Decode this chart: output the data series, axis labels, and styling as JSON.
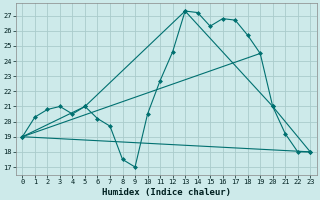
{
  "xlabel": "Humidex (Indice chaleur)",
  "background_color": "#cdeaea",
  "grid_color": "#aacccc",
  "line_color": "#007070",
  "xlim": [
    -0.5,
    23.5
  ],
  "ylim": [
    16.5,
    27.8
  ],
  "yticks": [
    17,
    18,
    19,
    20,
    21,
    22,
    23,
    24,
    25,
    26,
    27
  ],
  "xticks": [
    0,
    1,
    2,
    3,
    4,
    5,
    6,
    7,
    8,
    9,
    10,
    11,
    12,
    13,
    14,
    15,
    16,
    17,
    18,
    19,
    20,
    21,
    22,
    23
  ],
  "line_zigzag": {
    "x": [
      0,
      1,
      2,
      3,
      4,
      5,
      6,
      7,
      8,
      9,
      10,
      11,
      12,
      13,
      14,
      15,
      16,
      17,
      18,
      19,
      20,
      21,
      22,
      23
    ],
    "y": [
      19,
      20.3,
      20.8,
      21.0,
      20.5,
      21.0,
      20.2,
      19.7,
      17.5,
      17.0,
      20.5,
      22.7,
      24.6,
      27.3,
      27.2,
      26.3,
      26.8,
      26.7,
      25.7,
      24.5,
      21.0,
      19.2,
      18.0,
      18.0
    ]
  },
  "line_triangle": {
    "x": [
      0,
      5,
      13,
      20,
      23
    ],
    "y": [
      19,
      21.0,
      27.3,
      21.0,
      18.0
    ]
  },
  "line_upper_diag": {
    "x": [
      0,
      19
    ],
    "y": [
      19,
      24.5
    ]
  },
  "line_lower_diag": {
    "x": [
      0,
      23
    ],
    "y": [
      19,
      18.0
    ]
  }
}
